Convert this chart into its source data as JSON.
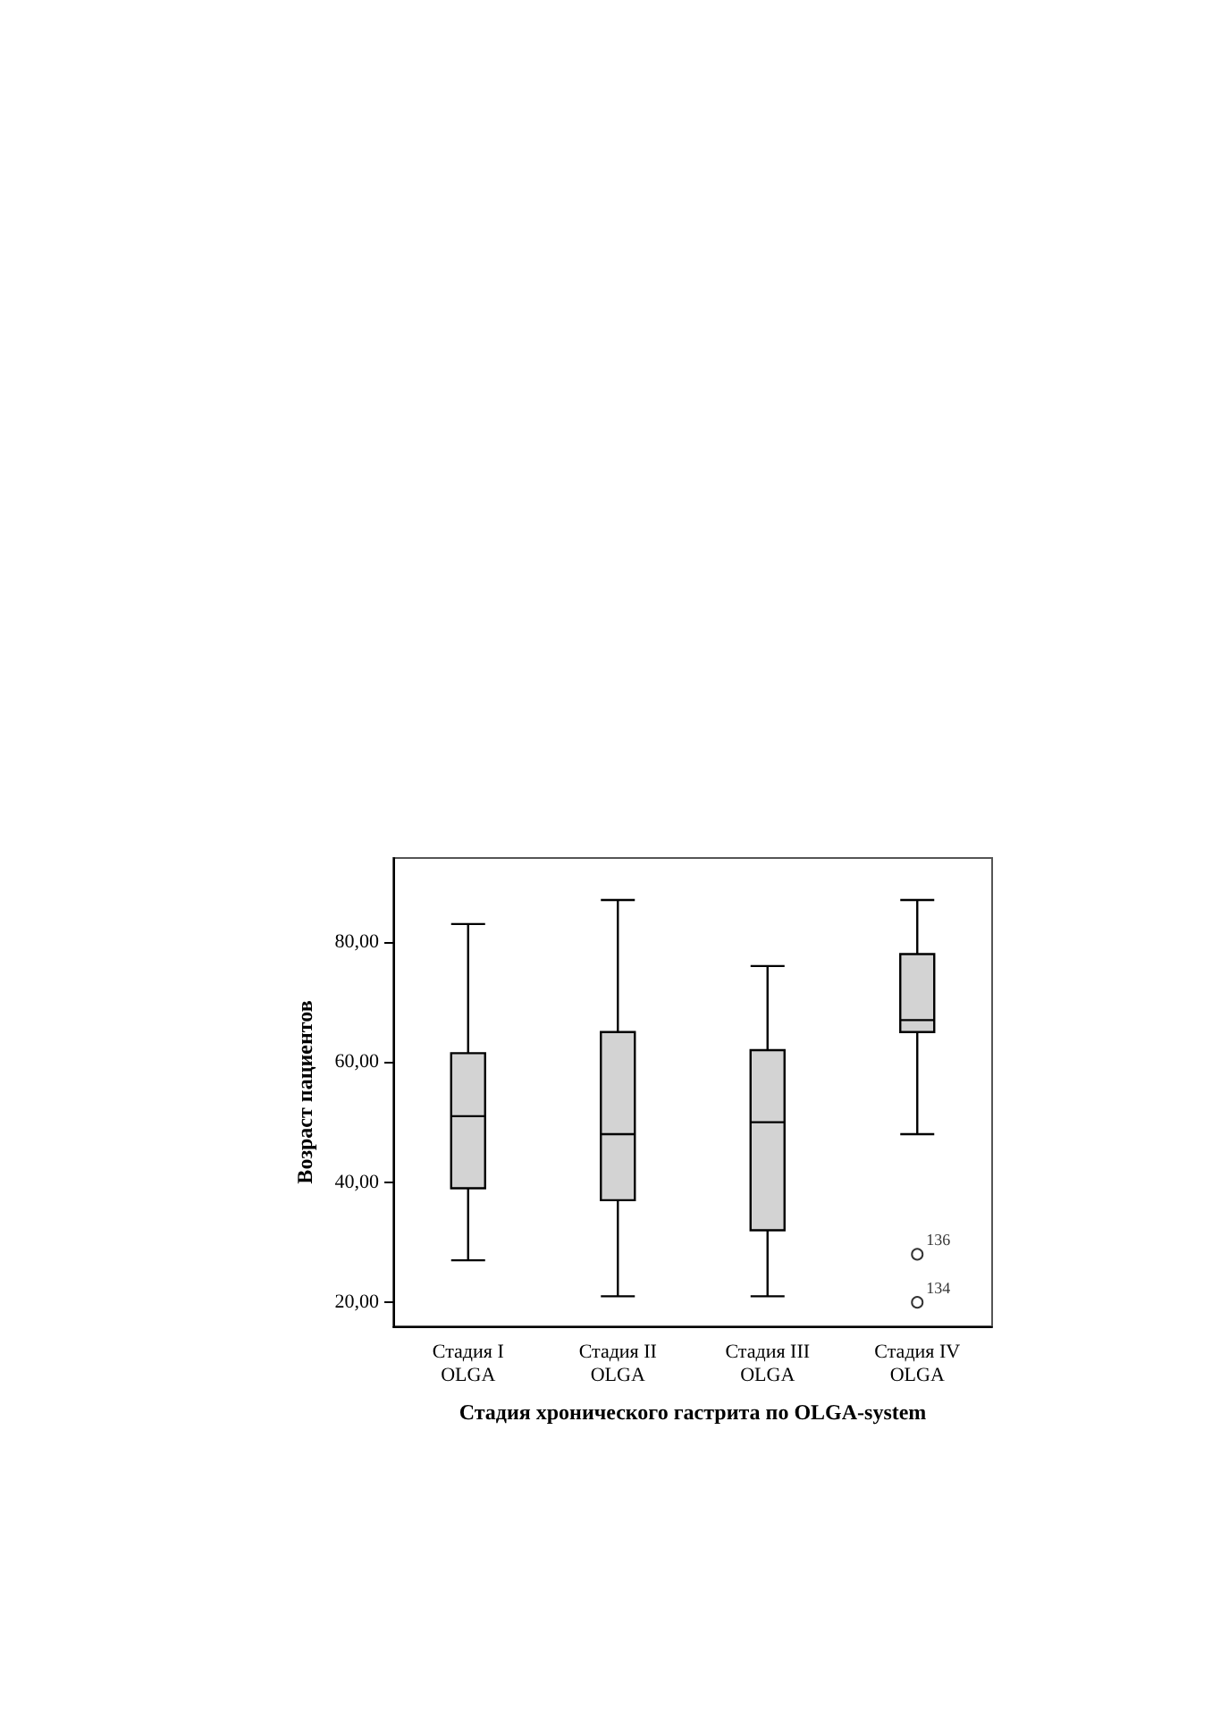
{
  "chart_data": {
    "type": "box",
    "xlabel": "Стадия хронического гастрита по OLGA-system",
    "ylabel": "Возраст пациентов",
    "categories": [
      "Стадия I\nOLGA",
      "Стадия II\nOLGA",
      "Стадия III\nOLGA",
      "Стадия IV\nOLGA"
    ],
    "color": "#d3d3d3",
    "boxes": [
      {
        "low": 27,
        "q1": 39,
        "median": 51,
        "q3": 61.5,
        "high": 83
      },
      {
        "low": 21,
        "q1": 37,
        "median": 48,
        "q3": 65,
        "high": 87
      },
      {
        "low": 21,
        "q1": 32,
        "median": 50,
        "q3": 62,
        "high": 76
      },
      {
        "low": 48,
        "q1": 65,
        "median": 67,
        "q3": 78,
        "high": 87,
        "outliers": [
          28,
          20
        ]
      }
    ],
    "ylim": [
      16,
      94
    ],
    "yticks": [
      {
        "value": 20,
        "label": "20,00"
      },
      {
        "value": 40,
        "label": "40,00"
      },
      {
        "value": 60,
        "label": "60,00"
      },
      {
        "value": 80,
        "label": "80,00"
      }
    ],
    "annotations": [
      "136",
      "134"
    ],
    "grid": false,
    "marker": "circle"
  }
}
